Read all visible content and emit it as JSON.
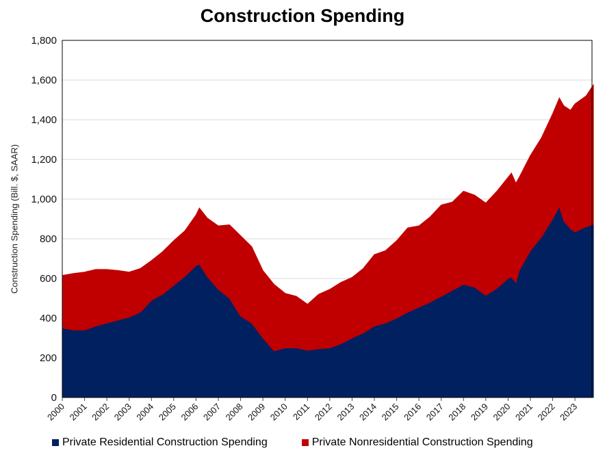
{
  "chart_data": {
    "type": "area",
    "stacked": true,
    "title": "Construction Spending",
    "xlabel": "",
    "ylabel": "Construction Spending (Bill. $, SAAR)",
    "ylim": [
      0,
      1800
    ],
    "xlim": [
      2000,
      2023.83
    ],
    "y_ticks": [
      "0",
      "200",
      "400",
      "600",
      "800",
      "1,000",
      "1,200",
      "1,400",
      "1,600",
      "1,800"
    ],
    "y_tick_values": [
      0,
      200,
      400,
      600,
      800,
      1000,
      1200,
      1400,
      1600,
      1800
    ],
    "x_ticks": [
      "2000",
      "2001",
      "2002",
      "2003",
      "2004",
      "2005",
      "2006",
      "2007",
      "2008",
      "2009",
      "2010",
      "2011",
      "2012",
      "2013",
      "2014",
      "2015",
      "2016",
      "2017",
      "2018",
      "2019",
      "2020",
      "2021",
      "2022",
      "2023"
    ],
    "grid": true,
    "legend_position": "bottom",
    "x": [
      2000,
      2000.5,
      2001,
      2001.5,
      2002,
      2002.5,
      2003,
      2003.5,
      2004,
      2004.5,
      2005,
      2005.5,
      2006,
      2006.15,
      2006.5,
      2007,
      2007.5,
      2008,
      2008.5,
      2009,
      2009.5,
      2010,
      2010.5,
      2011,
      2011.5,
      2012,
      2012.5,
      2013,
      2013.5,
      2014,
      2014.5,
      2015,
      2015.5,
      2016,
      2016.5,
      2017,
      2017.5,
      2018,
      2018.5,
      2019,
      2019.5,
      2020,
      2020.15,
      2020.35,
      2020.5,
      2021,
      2021.5,
      2022,
      2022.3,
      2022.5,
      2022.8,
      2023,
      2023.5,
      2023.83
    ],
    "series": [
      {
        "name": "Private Residential Construction Spending",
        "color": "#002060",
        "values": [
          350,
          340,
          340,
          360,
          375,
          390,
          405,
          430,
          490,
          520,
          565,
          610,
          665,
          672,
          610,
          545,
          500,
          410,
          375,
          300,
          235,
          250,
          250,
          238,
          245,
          250,
          270,
          300,
          325,
          360,
          375,
          400,
          430,
          455,
          480,
          510,
          540,
          570,
          555,
          515,
          550,
          600,
          607,
          579,
          640,
          740,
          810,
          900,
          962,
          890,
          850,
          835,
          860,
          872
        ]
      },
      {
        "name": "Private Nonresidential Construction Spending",
        "color": "#C00000",
        "values": [
          265,
          285,
          292,
          285,
          270,
          250,
          227,
          220,
          200,
          215,
          225,
          230,
          255,
          283,
          295,
          320,
          370,
          405,
          385,
          340,
          335,
          275,
          260,
          232,
          275,
          295,
          310,
          305,
          325,
          360,
          365,
          390,
          425,
          410,
          430,
          460,
          445,
          470,
          465,
          465,
          490,
          510,
          524,
          501,
          470,
          480,
          500,
          530,
          548,
          580,
          598,
          645,
          660,
          704
        ]
      }
    ]
  }
}
